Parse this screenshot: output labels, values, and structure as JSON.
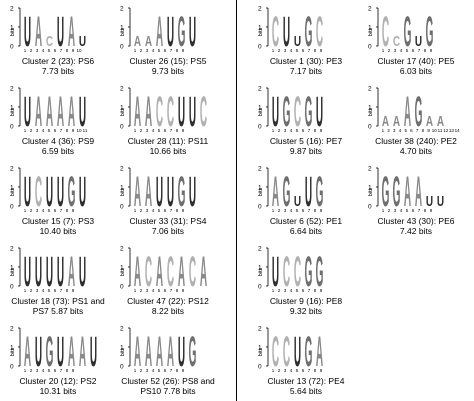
{
  "axis": {
    "unit": "bits",
    "ymax_label": "2",
    "ymid_label": "1",
    "ymin_label": "0"
  },
  "panels": [
    {
      "caption": "Cluster 2 (23): PS6\n7.73 bits",
      "positions": 10,
      "letters": "UAcUAu"
    },
    {
      "caption": "Cluster 26 (15): PS5\n9.73 bits",
      "positions": 9,
      "letters": "aaAUGU"
    },
    {
      "caption": "Cluster 4 (36): PS9\n6.59 bits",
      "positions": 11,
      "letters": "UAAAAU"
    },
    {
      "caption": "Cluster 28 (11): PS11\n10.66 bits",
      "positions": 9,
      "letters": "AACCUUC"
    },
    {
      "caption": "Cluster 15 (7): PS3\n10.40 bits",
      "positions": 9,
      "letters": "UCUUGU"
    },
    {
      "caption": "Cluster 33 (31): PS4\n7.06 bits",
      "positions": 9,
      "letters": "AAUUGU"
    },
    {
      "caption": "Cluster 18 (73): PS1 and\nPS7 5.87 bits",
      "positions": 9,
      "letters": "UUUUAU"
    },
    {
      "caption": "Cluster 47 (22): PS12\n8.22 bits",
      "positions": 9,
      "letters": "ACACACA"
    },
    {
      "caption": "Cluster 20 (12): PS2\n10.31 bits",
      "positions": 9,
      "letters": "AUGUAAU"
    },
    {
      "caption": "Cluster 52 (26): PS8 and\nPS10 7.78 bits",
      "positions": 9,
      "letters": "AAAAUG"
    },
    {
      "caption": "Cluster 1 (30): PE3\n7.17 bits",
      "positions": 9,
      "letters": "CUuGC"
    },
    {
      "caption": "Cluster 17 (40): PE5\n6.03 bits",
      "positions": 9,
      "letters": "CcGuG"
    },
    {
      "caption": "Cluster 5 (16): PE7\n9.87 bits",
      "positions": 9,
      "letters": "UGCGU"
    },
    {
      "caption": "Cluster 38 (240): PE2\n4.70 bits",
      "positions": 14,
      "letters": "aaAGaa"
    },
    {
      "caption": "Cluster 6 (52): PE1\n6.64 bits",
      "positions": 9,
      "letters": "AGuUG"
    },
    {
      "caption": "Cluster 43 (30): PE6\n7.42 bits",
      "positions": 9,
      "letters": "GGAAuu"
    },
    {
      "caption": "Cluster 9 (16): PE8\n9.32 bits",
      "positions": 9,
      "letters": "UCCGG"
    },
    {
      "caption": "Cluster 13 (72): PE4\n5.64 bits",
      "positions": 9,
      "letters": "CCUGA"
    }
  ]
}
